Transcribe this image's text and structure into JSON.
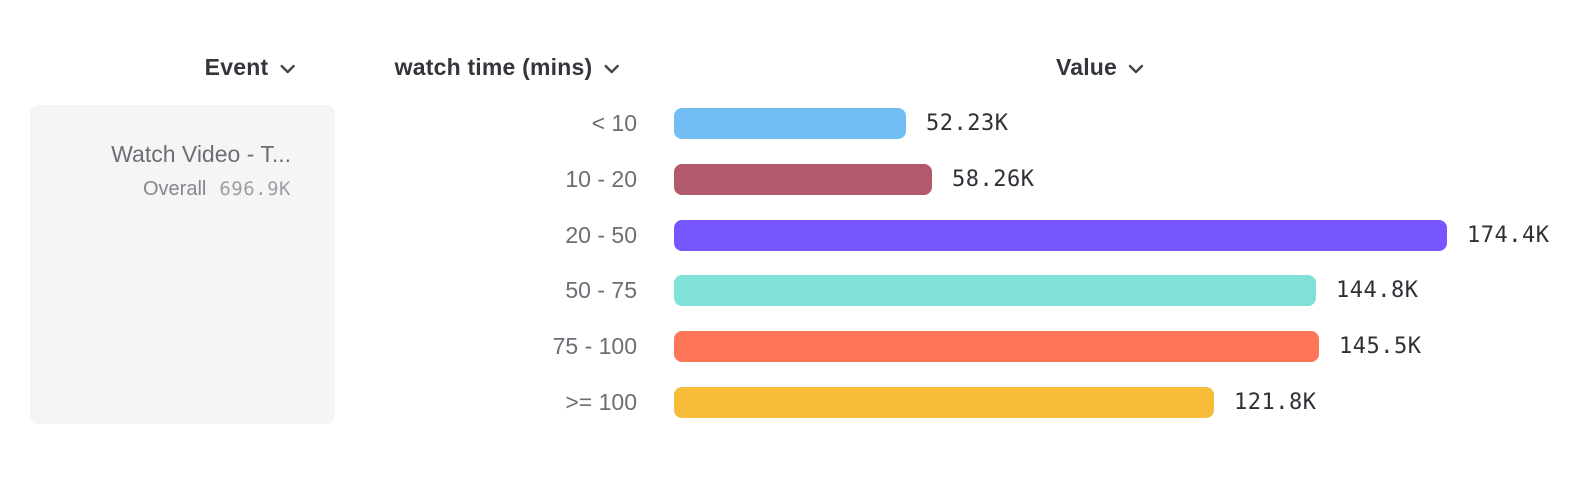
{
  "header": {
    "event_label": "Event",
    "breakdown_label": "watch time (mins)",
    "value_label": "Value"
  },
  "event_card": {
    "name": "Watch Video - T...",
    "overall_label": "Overall",
    "overall_value": "696.9K"
  },
  "chart_data": {
    "type": "bar",
    "orientation": "horizontal",
    "title": "",
    "xlabel": "Value",
    "ylabel": "watch time (mins)",
    "categories": [
      "< 10",
      "10 - 20",
      "20 - 50",
      "50 - 75",
      "75 - 100",
      ">= 100"
    ],
    "values": [
      52230,
      58260,
      174400,
      144800,
      145500,
      121800
    ],
    "value_labels": [
      "52.23K",
      "58.26K",
      "174.4K",
      "144.8K",
      "145.5K",
      "121.8K"
    ],
    "bar_colors": [
      "#72BEF4",
      "#B2596E",
      "#7856FF",
      "#80E1D9",
      "#FF7557",
      "#F8BC3B"
    ],
    "grid": false,
    "legend": false,
    "xlim": [
      0,
      178000
    ]
  },
  "icons": {
    "chevron_down": "chevron-down-icon"
  },
  "colors": {
    "header_text": "#35353c",
    "category_text": "#6d6d76",
    "value_text": "#2f2f36",
    "card_bg": "#f5f5f6"
  }
}
